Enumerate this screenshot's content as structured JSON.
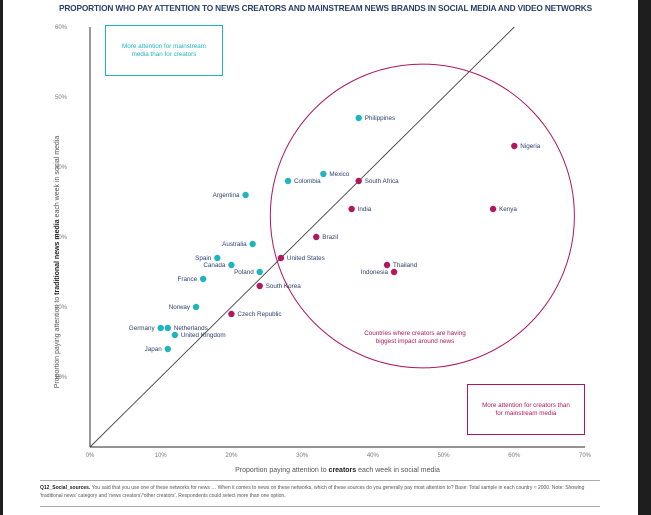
{
  "title": "PROPORTION WHO PAY ATTENTION TO NEWS CREATORS AND MAINSTREAM NEWS BRANDS IN SOCIAL MEDIA AND VIDEO NETWORKS",
  "colors": {
    "creators_more": "#b0175e",
    "mainstream_more": "#1fb5c0",
    "label_text": "#2c3e6b",
    "axis": "#555555"
  },
  "annotations": {
    "top_left_box": "More attention for mainstream media than for creators",
    "bottom_right_box": "More attention for creators than for mainstream media",
    "circle_note": "Countries where creators are having biggest impact around news"
  },
  "footnote": {
    "code": "Q12_Social_sources.",
    "text": "You said that you use one of these networks for news … When it comes to news on these networks, which of these sources do you generally pay most attention to? Base: Total sample in each country ≈ 2000. Note: Showing 'traditional news' category and 'news creators'/'other creators'. Respondents could select more than one option."
  },
  "chart_data": {
    "type": "scatter",
    "title": "PROPORTION WHO PAY ATTENTION TO NEWS CREATORS AND MAINSTREAM NEWS BRANDS IN SOCIAL MEDIA AND VIDEO NETWORKS",
    "xlabel_pre": "Proportion paying attention to ",
    "xlabel_bold": "creators",
    "xlabel_post": " each week in social media",
    "ylabel_pre": "Proportion paying attention to ",
    "ylabel_bold": "traditional news media",
    "ylabel_post": " each week in social media",
    "xlim": [
      0,
      70
    ],
    "ylim": [
      0,
      60
    ],
    "xticks": [
      "0%",
      "10%",
      "20%",
      "30%",
      "40%",
      "50%",
      "60%",
      "70%"
    ],
    "yticks": [
      "10%",
      "20%",
      "30%",
      "40%",
      "50%",
      "60%"
    ],
    "xtick_values": [
      0,
      10,
      20,
      30,
      40,
      50,
      60,
      70
    ],
    "ytick_values": [
      10,
      20,
      30,
      40,
      50,
      60
    ],
    "reference_line": "y = x",
    "grid": false,
    "highlight_circle": {
      "center": [
        47,
        33
      ],
      "radius_x": 21.5,
      "radius_y": 21.7
    },
    "points": [
      {
        "country": "Philippines",
        "x": 38,
        "y": 47,
        "group": "mainstream",
        "label_side": "right"
      },
      {
        "country": "Nigeria",
        "x": 60,
        "y": 43,
        "group": "creators",
        "label_side": "right"
      },
      {
        "country": "Mexico",
        "x": 33,
        "y": 39,
        "group": "mainstream",
        "label_side": "right"
      },
      {
        "country": "Colombia",
        "x": 28,
        "y": 38,
        "group": "mainstream",
        "label_side": "right"
      },
      {
        "country": "South Africa",
        "x": 38,
        "y": 38,
        "group": "creators",
        "label_side": "right"
      },
      {
        "country": "Argentina",
        "x": 22,
        "y": 36,
        "group": "mainstream",
        "label_side": "left"
      },
      {
        "country": "India",
        "x": 37,
        "y": 34,
        "group": "creators",
        "label_side": "right"
      },
      {
        "country": "Kenya",
        "x": 57,
        "y": 34,
        "group": "creators",
        "label_side": "right"
      },
      {
        "country": "Brazil",
        "x": 32,
        "y": 30,
        "group": "creators",
        "label_side": "right"
      },
      {
        "country": "Australia",
        "x": 23,
        "y": 29,
        "group": "mainstream",
        "label_side": "left"
      },
      {
        "country": "Spain",
        "x": 18,
        "y": 27,
        "group": "mainstream",
        "label_side": "left"
      },
      {
        "country": "United States",
        "x": 27,
        "y": 27,
        "group": "creators",
        "label_side": "right"
      },
      {
        "country": "Canada",
        "x": 20,
        "y": 26,
        "group": "mainstream",
        "label_side": "left"
      },
      {
        "country": "Thailand",
        "x": 42,
        "y": 26,
        "group": "creators",
        "label_side": "right"
      },
      {
        "country": "Poland",
        "x": 24,
        "y": 25,
        "group": "mainstream",
        "label_side": "left"
      },
      {
        "country": "Indonesia",
        "x": 43,
        "y": 25,
        "group": "creators",
        "label_side": "left"
      },
      {
        "country": "France",
        "x": 16,
        "y": 24,
        "group": "mainstream",
        "label_side": "left"
      },
      {
        "country": "South Korea",
        "x": 24,
        "y": 23,
        "group": "creators",
        "label_side": "right"
      },
      {
        "country": "Norway",
        "x": 15,
        "y": 20,
        "group": "mainstream",
        "label_side": "left"
      },
      {
        "country": "Czech Republic",
        "x": 20,
        "y": 19,
        "group": "creators",
        "label_side": "right"
      },
      {
        "country": "Germany",
        "x": 10,
        "y": 17,
        "group": "mainstream",
        "label_side": "left"
      },
      {
        "country": "Netherlands",
        "x": 11,
        "y": 17,
        "group": "mainstream",
        "label_side": "right"
      },
      {
        "country": "United Kingdom",
        "x": 12,
        "y": 16,
        "group": "mainstream",
        "label_side": "right"
      },
      {
        "country": "Japan",
        "x": 11,
        "y": 14,
        "group": "mainstream",
        "label_side": "left"
      }
    ]
  }
}
